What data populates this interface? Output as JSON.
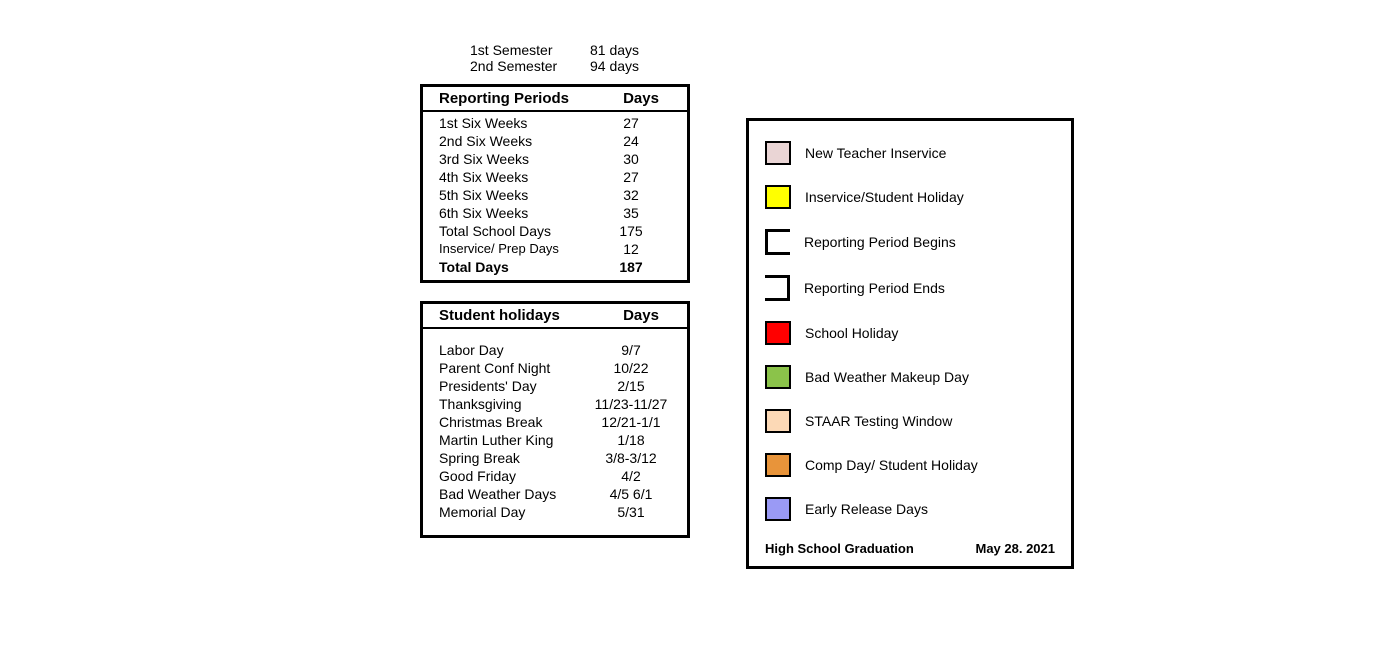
{
  "semesters": [
    {
      "label": "1st Semester",
      "days": "81 days"
    },
    {
      "label": "2nd Semester",
      "days": "94 days"
    }
  ],
  "reporting": {
    "header_label": "Reporting Periods",
    "header_days": "Days",
    "rows": [
      {
        "label": "1st Six Weeks",
        "value": "27"
      },
      {
        "label": "2nd Six Weeks",
        "value": "24"
      },
      {
        "label": "3rd Six Weeks",
        "value": "30"
      },
      {
        "label": "4th Six Weeks",
        "value": "27"
      },
      {
        "label": "5th Six Weeks",
        "value": "32"
      },
      {
        "label": "6th Six Weeks",
        "value": "35"
      },
      {
        "label": "Total School Days",
        "value": "175"
      }
    ],
    "inservice": {
      "label": "Inservice/ Prep Days",
      "value": "12"
    },
    "total": {
      "label": "Total Days",
      "value": "187"
    }
  },
  "holidays": {
    "header_label": "Student holidays",
    "header_days": "Days",
    "rows": [
      {
        "label": "Labor Day",
        "value": "9/7"
      },
      {
        "label": "Parent Conf Night",
        "value": "10/22"
      },
      {
        "label": "Presidents' Day",
        "value": "2/15"
      },
      {
        "label": "Thanksgiving",
        "value": "11/23-11/27"
      },
      {
        "label": "Christmas Break",
        "value": "12/21-1/1"
      },
      {
        "label": "Martin Luther King",
        "value": "1/18"
      },
      {
        "label": "Spring Break",
        "value": "3/8-3/12"
      },
      {
        "label": "Good Friday",
        "value": "4/2"
      },
      {
        "label": "Bad Weather Days",
        "value": "4/5  6/1"
      },
      {
        "label": "Memorial Day",
        "value": "5/31"
      }
    ]
  },
  "legend": {
    "items": [
      {
        "type": "swatch",
        "color": "#ead5d5",
        "label": "New Teacher Inservice"
      },
      {
        "type": "swatch",
        "color": "#ffff00",
        "label": "Inservice/Student Holiday"
      },
      {
        "type": "bracket-begin",
        "label": "Reporting Period Begins"
      },
      {
        "type": "bracket-end",
        "label": "Reporting Period Ends"
      },
      {
        "type": "swatch",
        "color": "#ff0000",
        "label": "School Holiday"
      },
      {
        "type": "swatch",
        "color": "#8bc34a",
        "label": "Bad Weather Makeup Day"
      },
      {
        "type": "swatch",
        "color": "#fcd9b6",
        "label": "STAAR Testing Window"
      },
      {
        "type": "swatch",
        "color": "#e8943a",
        "label": "Comp Day/ Student Holiday"
      },
      {
        "type": "swatch",
        "color": "#9a9af5",
        "label": "Early Release Days"
      }
    ],
    "graduation_label": "High School Graduation",
    "graduation_date": "May 28. 2021"
  }
}
